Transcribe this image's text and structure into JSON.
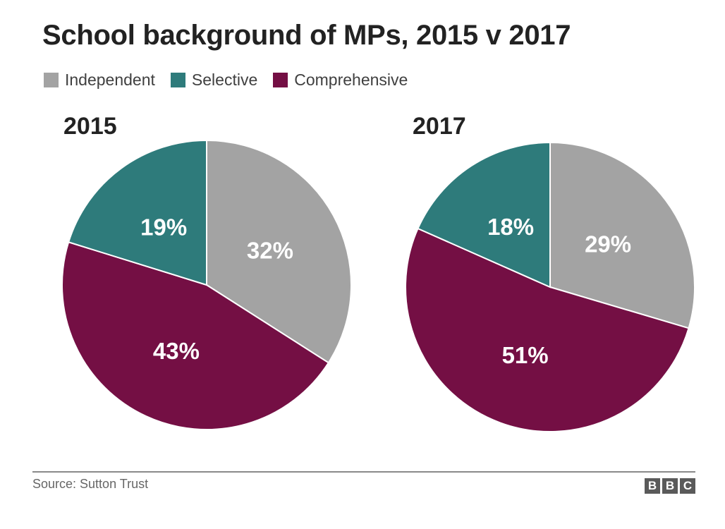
{
  "chart_data": {
    "type": "pie",
    "title": "School background of MPs, 2015 v 2017",
    "legend": {
      "placement": "top-left",
      "entries": [
        {
          "name": "Independent",
          "color": "#a3a3a3"
        },
        {
          "name": "Selective",
          "color": "#2e7b7b"
        },
        {
          "name": "Comprehensive",
          "color": "#740f44"
        }
      ]
    },
    "categories": [
      "Independent",
      "Selective",
      "Comprehensive"
    ],
    "colors": [
      "#a3a3a3",
      "#2e7b7b",
      "#740f44"
    ],
    "pies": [
      {
        "label": "2015",
        "values": [
          32,
          19,
          43
        ],
        "value_labels": [
          "32%",
          "19%",
          "43%"
        ]
      },
      {
        "label": "2017",
        "values": [
          29,
          18,
          51
        ],
        "value_labels": [
          "29%",
          "18%",
          "51%"
        ]
      }
    ]
  },
  "footer": {
    "source": "Source: Sutton Trust",
    "logo_letters": [
      "B",
      "B",
      "C"
    ]
  }
}
